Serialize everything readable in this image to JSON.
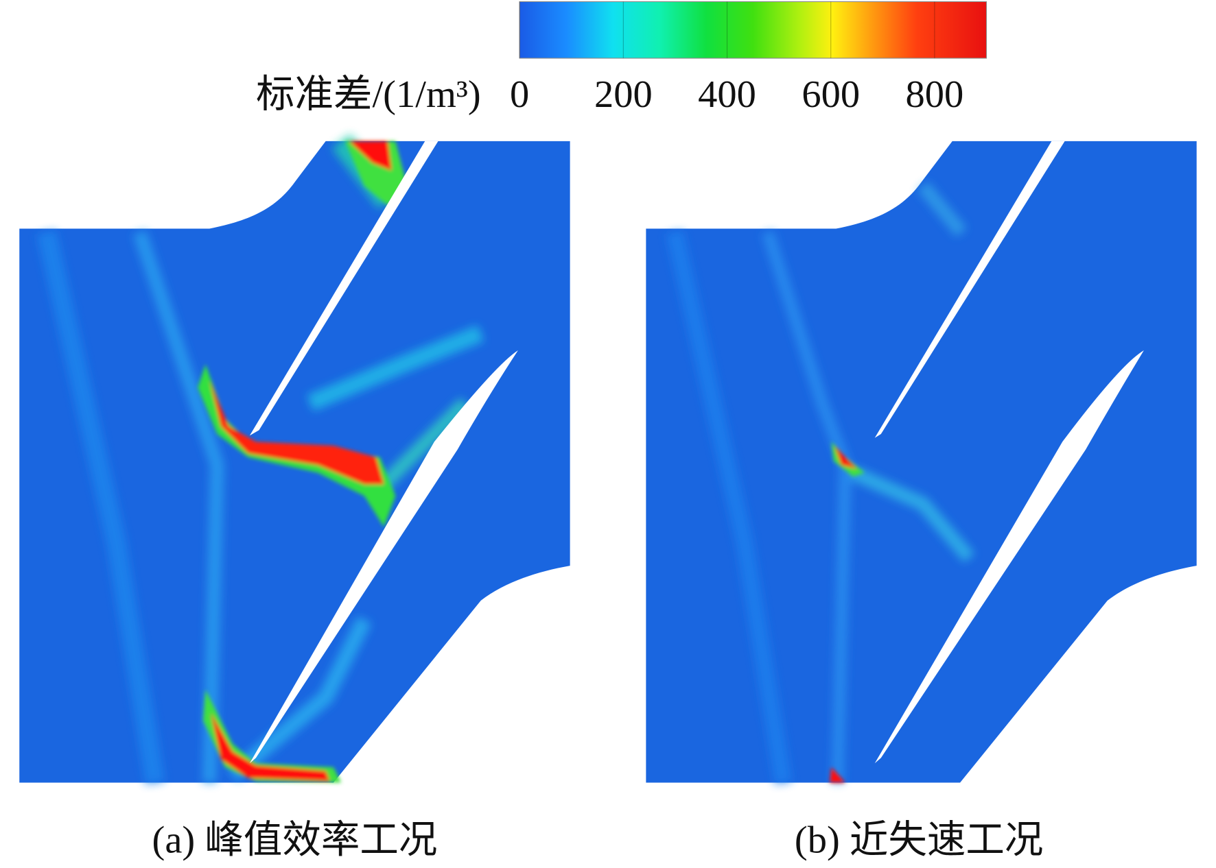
{
  "colorbar": {
    "label": "标准差/(1/m³)",
    "range": [
      0,
      900
    ],
    "ticks": [
      0,
      200,
      400,
      600,
      800
    ]
  },
  "panels": [
    {
      "caption": "(a) 峰值效率工况"
    },
    {
      "caption": "(b) 近失速工况"
    }
  ]
}
